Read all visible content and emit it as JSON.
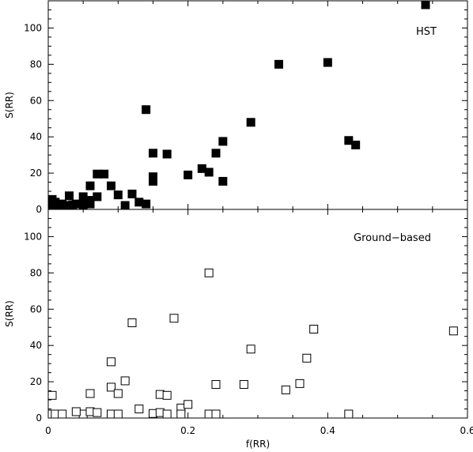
{
  "chart_data": [
    {
      "type": "scatter",
      "panel": "top",
      "annotation": "HST",
      "xlabel": "",
      "ylabel": "S(RR)",
      "xlim": [
        0,
        0.6
      ],
      "ylim": [
        0,
        115
      ],
      "x_ticks": [
        0,
        0.2,
        0.4,
        0.6
      ],
      "x_tick_labels": [
        "",
        "",
        "",
        ""
      ],
      "y_ticks": [
        0,
        20,
        40,
        60,
        80,
        100
      ],
      "y_tick_labels": [
        "0",
        "20",
        "40",
        "60",
        "80",
        "100"
      ],
      "marker": "filled-square",
      "color": "#000000",
      "points": [
        [
          0.0,
          5.5
        ],
        [
          0.0,
          2.5
        ],
        [
          0.0,
          1.0
        ],
        [
          0.005,
          3.5
        ],
        [
          0.005,
          0.5
        ],
        [
          0.01,
          2.0
        ],
        [
          0.01,
          4.0
        ],
        [
          0.015,
          1.0
        ],
        [
          0.02,
          0.5
        ],
        [
          0.02,
          3.0
        ],
        [
          0.025,
          1.5
        ],
        [
          0.03,
          2.0
        ],
        [
          0.03,
          7.5
        ],
        [
          0.035,
          2.5
        ],
        [
          0.04,
          3.0
        ],
        [
          0.05,
          3.0
        ],
        [
          0.05,
          7.0
        ],
        [
          0.05,
          0.5
        ],
        [
          0.055,
          4.5
        ],
        [
          0.06,
          3.0
        ],
        [
          0.06,
          13.0
        ],
        [
          0.06,
          5.0
        ],
        [
          0.07,
          7.0
        ],
        [
          0.07,
          19.5
        ],
        [
          0.08,
          19.5
        ],
        [
          0.09,
          13.0
        ],
        [
          0.1,
          8.0
        ],
        [
          0.11,
          1.0
        ],
        [
          0.12,
          8.5
        ],
        [
          0.13,
          4.0
        ],
        [
          0.14,
          3.0
        ],
        [
          0.14,
          55.0
        ],
        [
          0.15,
          31.0
        ],
        [
          0.15,
          18.0
        ],
        [
          0.15,
          15.5
        ],
        [
          0.17,
          30.5
        ],
        [
          0.2,
          19.0
        ],
        [
          0.22,
          22.5
        ],
        [
          0.23,
          20.5
        ],
        [
          0.24,
          31.0
        ],
        [
          0.25,
          37.5
        ],
        [
          0.25,
          15.5
        ],
        [
          0.29,
          48.0
        ],
        [
          0.33,
          80.0
        ],
        [
          0.4,
          81.0
        ],
        [
          0.43,
          38.0
        ],
        [
          0.44,
          35.5
        ],
        [
          0.54,
          113.0
        ]
      ]
    },
    {
      "type": "scatter",
      "panel": "bottom",
      "annotation": "Ground−based",
      "xlabel": "f(RR)",
      "ylabel": "S(RR)",
      "xlim": [
        0,
        0.6
      ],
      "ylim": [
        0,
        115
      ],
      "x_ticks": [
        0,
        0.2,
        0.4,
        0.6
      ],
      "x_tick_labels": [
        "0",
        "0.2",
        "0.4",
        "0.6"
      ],
      "y_ticks": [
        0,
        20,
        40,
        60,
        80,
        100
      ],
      "y_tick_labels": [
        "0",
        "20",
        "40",
        "60",
        "80",
        "100"
      ],
      "marker": "open-square",
      "color": "#000000",
      "points": [
        [
          0.0,
          12.5
        ],
        [
          0.0,
          0.5
        ],
        [
          0.01,
          0.5
        ],
        [
          0.02,
          0.5
        ],
        [
          0.05,
          0.5
        ],
        [
          0.04,
          3.5
        ],
        [
          0.06,
          13.5
        ],
        [
          0.06,
          3.5
        ],
        [
          0.07,
          3.0
        ],
        [
          0.09,
          31.0
        ],
        [
          0.09,
          17.0
        ],
        [
          0.1,
          13.5
        ],
        [
          0.09,
          1.5
        ],
        [
          0.1,
          0.5
        ],
        [
          0.11,
          20.5
        ],
        [
          0.12,
          52.5
        ],
        [
          0.13,
          5.0
        ],
        [
          0.15,
          2.5
        ],
        [
          0.16,
          13.0
        ],
        [
          0.16,
          3.0
        ],
        [
          0.17,
          12.5
        ],
        [
          0.17,
          1.5
        ],
        [
          0.18,
          55.0
        ],
        [
          0.19,
          5.5
        ],
        [
          0.19,
          2.0
        ],
        [
          0.2,
          7.5
        ],
        [
          0.23,
          80.0
        ],
        [
          0.23,
          0.5
        ],
        [
          0.24,
          18.5
        ],
        [
          0.24,
          0.5
        ],
        [
          0.28,
          18.5
        ],
        [
          0.29,
          38.0
        ],
        [
          0.34,
          15.5
        ],
        [
          0.36,
          19.0
        ],
        [
          0.37,
          33.0
        ],
        [
          0.38,
          49.0
        ],
        [
          0.43,
          0.5
        ],
        [
          0.58,
          48.0
        ]
      ]
    }
  ]
}
